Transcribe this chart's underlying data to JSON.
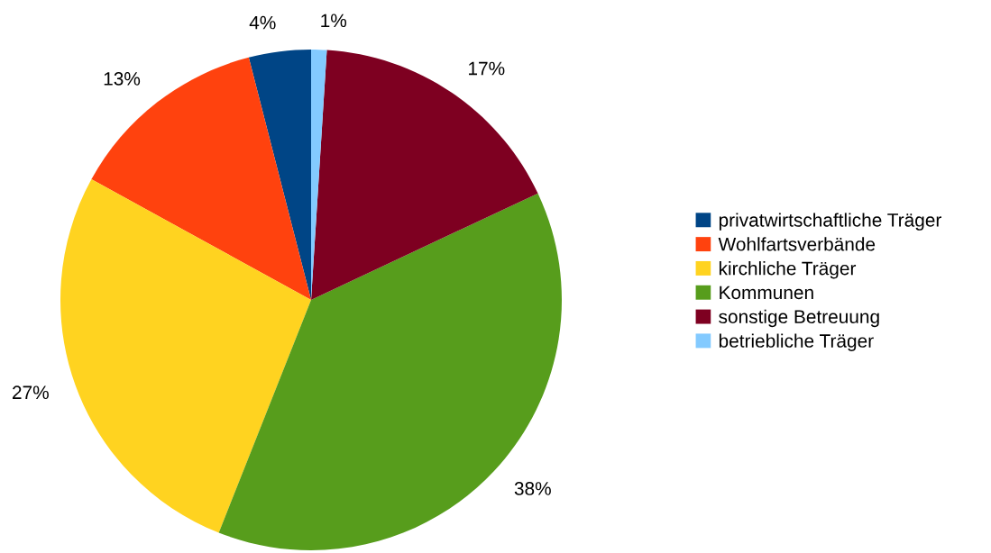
{
  "chart_data": {
    "type": "pie",
    "categories": [
      "privatwirtschaftliche Träger",
      "Wohlfartsverbände",
      "kirchliche Träger",
      "Kommunen",
      "sonstige Betreuung",
      "betriebliche Träger"
    ],
    "values": [
      4,
      13,
      27,
      38,
      17,
      1
    ],
    "value_labels": [
      "4%",
      "13%",
      "27%",
      "38%",
      "17%",
      "1%"
    ],
    "colors": [
      "#004586",
      "#ff420e",
      "#ffd320",
      "#579d1c",
      "#7e0021",
      "#83caff"
    ],
    "legend": "right"
  }
}
